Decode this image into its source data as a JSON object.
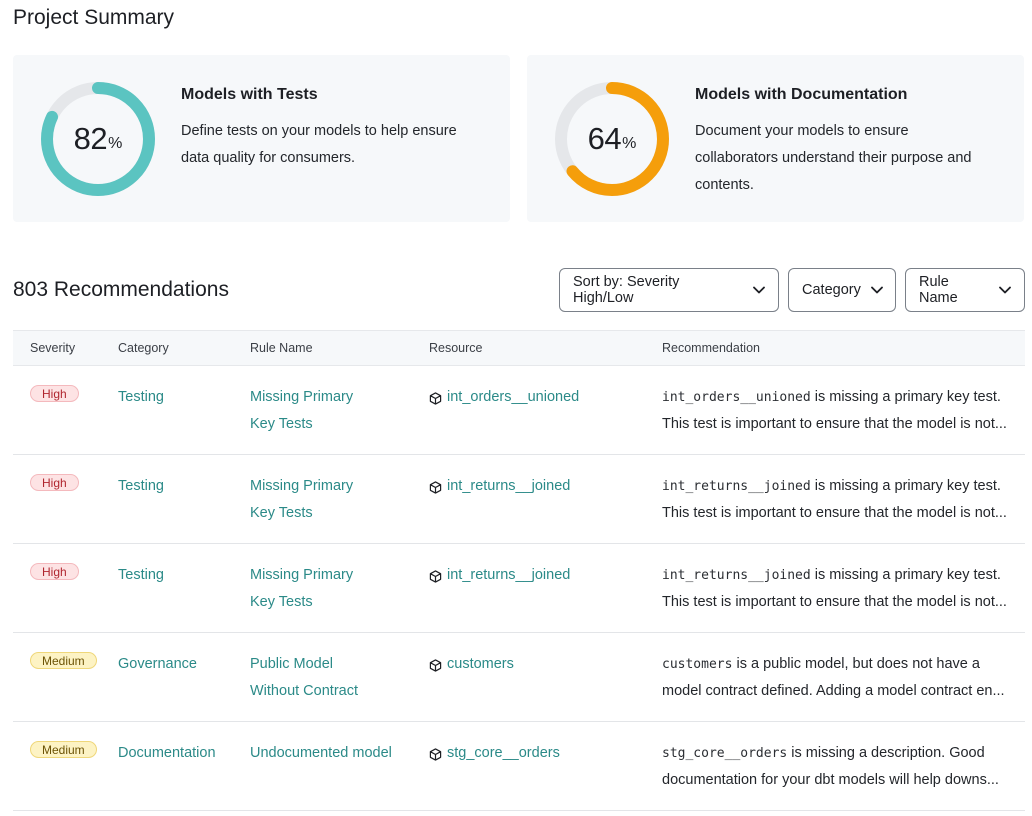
{
  "page": {
    "title": "Project Summary"
  },
  "cards": [
    {
      "value": "82",
      "pct_symbol": "%",
      "fraction": 0.82,
      "color": "#5bc4c1",
      "title": "Models with Tests",
      "description": "Define tests on your models to help ensure data quality for consumers."
    },
    {
      "value": "64",
      "pct_symbol": "%",
      "fraction": 0.64,
      "color": "#f59e0b",
      "title": "Models with Documentation",
      "description": "Document your models to ensure collaborators understand their purpose and contents."
    }
  ],
  "recommendations": {
    "count_label": "803 Recommendations",
    "sort_label": "Sort by: Severity High/Low",
    "category_filter": "Category",
    "rule_filter": "Rule Name",
    "columns": [
      "Severity",
      "Category",
      "Rule Name",
      "Resource",
      "Recommendation"
    ],
    "rows": [
      {
        "severity": "High",
        "severity_level": "high",
        "category": "Testing",
        "rule_line1": "Missing Primary",
        "rule_line2": "Key Tests",
        "resource": "int_orders__unioned",
        "rec_code": "int_orders__unioned",
        "rec_text": " is missing a primary key test.",
        "rec_line2": "This test is important to ensure that the model is not..."
      },
      {
        "severity": "High",
        "severity_level": "high",
        "category": "Testing",
        "rule_line1": "Missing Primary",
        "rule_line2": "Key Tests",
        "resource": "int_returns__joined",
        "rec_code": "int_returns__joined",
        "rec_text": " is missing a primary key test.",
        "rec_line2": "This test is important to ensure that the model is not..."
      },
      {
        "severity": "High",
        "severity_level": "high",
        "category": "Testing",
        "rule_line1": "Missing Primary",
        "rule_line2": "Key Tests",
        "resource": "int_returns__joined",
        "rec_code": "int_returns__joined",
        "rec_text": " is missing a primary key test.",
        "rec_line2": "This test is important to ensure that the model is not..."
      },
      {
        "severity": "Medium",
        "severity_level": "medium",
        "category": "Governance",
        "rule_line1": "Public Model",
        "rule_line2": "Without Contract",
        "resource": "customers",
        "rec_code": "customers",
        "rec_text": " is a public model, but does not have a",
        "rec_line2": "model contract defined. Adding a model contract en..."
      },
      {
        "severity": "Medium",
        "severity_level": "medium",
        "category": "Documentation",
        "rule_line1": "Undocumented model",
        "rule_line2": "",
        "resource": "stg_core__orders",
        "rec_code": "stg_core__orders",
        "rec_text": " is missing a description. Good",
        "rec_line2": "documentation for your dbt models will help downs..."
      }
    ]
  },
  "icons": {
    "chevron": "chevron-down-icon",
    "resource": "cube-icon"
  },
  "colors": {
    "link": "#2b8a88",
    "track": "#e5e7ea"
  }
}
